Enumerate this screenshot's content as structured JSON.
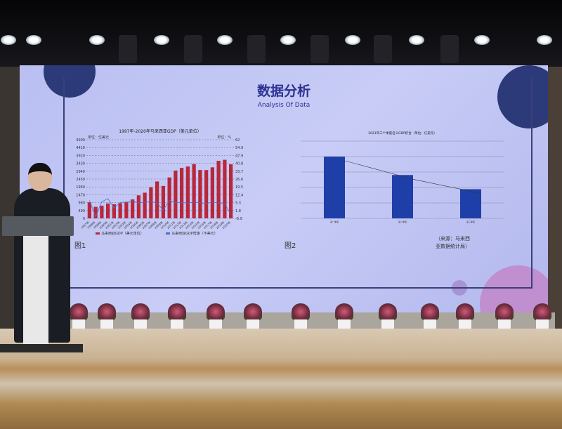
{
  "slide": {
    "title": "数据分析",
    "subtitle": "Analysis Of Data",
    "figure1_label": "图1",
    "figure2_label": "图2",
    "source": [
      "（来源：马来西",
      "亚数据统计局）"
    ]
  },
  "colors": {
    "bar_red": "#b8273a",
    "bar_blue": "#1f3fa8",
    "screen": "#c2c6f4",
    "title": "#2c3191"
  },
  "chart_data": [
    {
      "type": "bar",
      "title": "1997年-2020年马来西亚GDP（美元单位）",
      "ylabel": "单位：亿美元",
      "y2label": "单位：%",
      "categories": [
        "1997年",
        "1998年",
        "1999年",
        "2000年",
        "2001年",
        "2002年",
        "2003年",
        "2004年",
        "2005年",
        "2006年",
        "2007年",
        "2008年",
        "2009年",
        "2010年",
        "2011年",
        "2012年",
        "2013年",
        "2014年",
        "2015年",
        "2016年",
        "2017年",
        "2018年",
        "2019年",
        "2020年"
      ],
      "series": [
        {
          "name": "马来西亚GDP（美元单位）",
          "values": [
            1000.1,
            720,
            790,
            927.8,
            880,
            950,
            1002,
            1180,
            1435.3,
            1600,
            1935.9,
            2300,
            2022.6,
            2550.2,
            2980,
            3144.4,
            3230,
            3380.6,
            3012.6,
            3012,
            3180,
            3587.2,
            3650,
            3368.0
          ]
        },
        {
          "name": "马来西亚GDP增速（不美元）",
          "values": [
            7.3,
            -7.4,
            6.1,
            8.9,
            0.5,
            5.4,
            5.8,
            6.8,
            5.0,
            5.6,
            6.3,
            4.8,
            -1.5,
            7.4,
            5.3,
            5.5,
            4.7,
            6.0,
            5.1,
            4.4,
            5.8,
            4.8,
            4.4,
            -5.6
          ]
        }
      ],
      "yticks": [
        "0",
        "490",
        "980",
        "1470",
        "1960",
        "2450",
        "2940",
        "3430",
        "3920",
        "4410",
        "4900"
      ],
      "y2ticks": [
        "-8.9",
        "1.8",
        "5.3",
        "12.4",
        "19.5",
        "26.6",
        "33.7",
        "40.8",
        "47.9",
        "54.9",
        "62"
      ],
      "ylim": [
        0,
        4900
      ],
      "grid": true,
      "legend": "bottom"
    },
    {
      "type": "bar",
      "title": "2021年三个季度名义GDP折合（单位：亿美元）",
      "categories": [
        "第一季度",
        "第二季度",
        "第三季度"
      ],
      "values": [
        1440,
        1010,
        680
      ],
      "ylim": [
        0,
        1800
      ],
      "trendline": true,
      "grid": true
    }
  ]
}
